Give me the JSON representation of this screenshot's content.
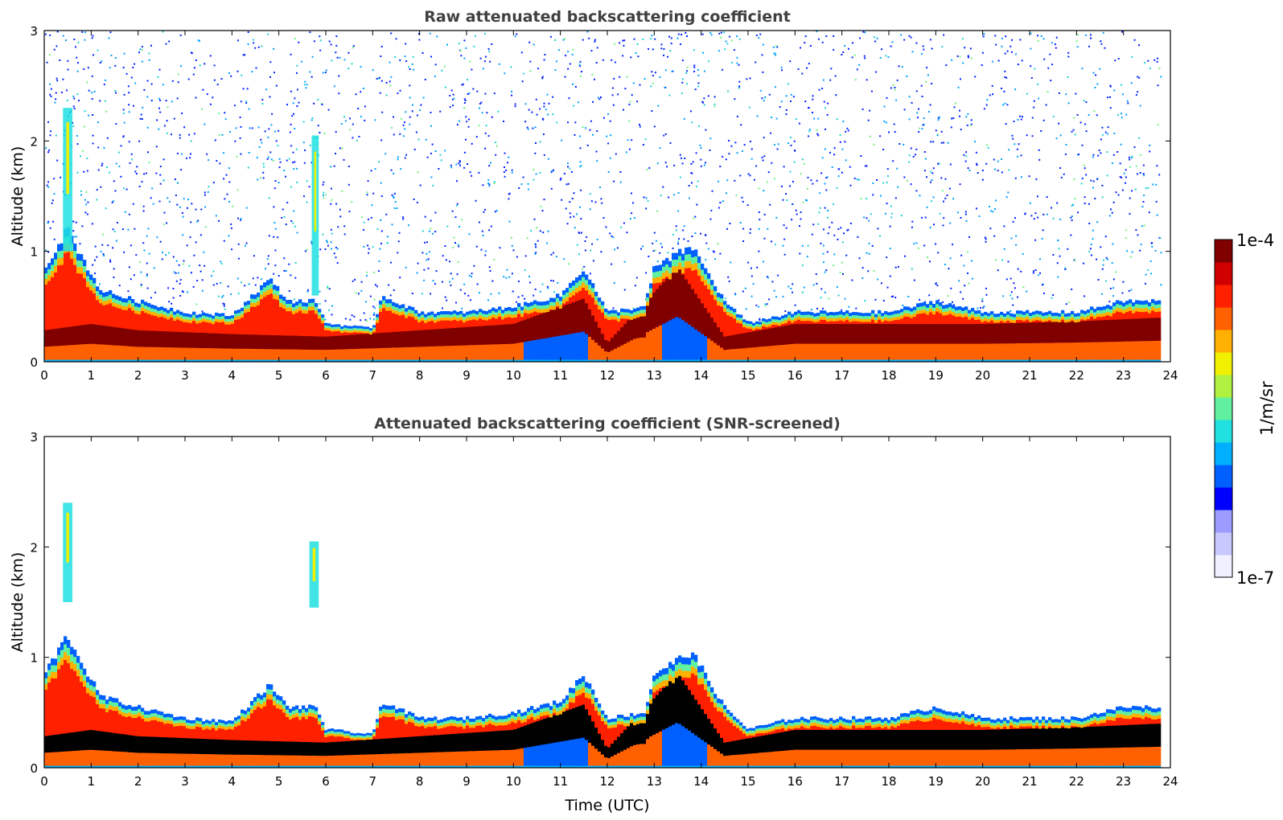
{
  "chart_data": [
    {
      "type": "heatmap",
      "panel": "top",
      "title": "Raw attenuated backscattering coefficient",
      "xlabel": "",
      "ylabel": "Altitude (km)",
      "xlim": [
        0,
        24
      ],
      "ylim": [
        0,
        3
      ],
      "xticks": [
        "0",
        "1",
        "2",
        "3",
        "4",
        "5",
        "6",
        "7",
        "8",
        "9",
        "10",
        "11",
        "12",
        "13",
        "14",
        "15",
        "16",
        "17",
        "18",
        "19",
        "20",
        "21",
        "22",
        "23",
        "24"
      ],
      "yticks": [
        "0",
        "1",
        "2",
        "3"
      ],
      "boundary_layer_top_km": [
        {
          "t": 0.0,
          "h": 0.85
        },
        {
          "t": 0.5,
          "h": 1.2
        },
        {
          "t": 0.8,
          "h": 0.95
        },
        {
          "t": 1.2,
          "h": 0.65
        },
        {
          "t": 2.0,
          "h": 0.55
        },
        {
          "t": 3.0,
          "h": 0.45
        },
        {
          "t": 4.0,
          "h": 0.42
        },
        {
          "t": 4.8,
          "h": 0.75
        },
        {
          "t": 5.2,
          "h": 0.55
        },
        {
          "t": 5.8,
          "h": 0.55
        },
        {
          "t": 6.0,
          "h": 0.35
        },
        {
          "t": 7.0,
          "h": 0.3
        },
        {
          "t": 7.2,
          "h": 0.6
        },
        {
          "t": 8.0,
          "h": 0.45
        },
        {
          "t": 9.0,
          "h": 0.45
        },
        {
          "t": 10.0,
          "h": 0.5
        },
        {
          "t": 11.0,
          "h": 0.6
        },
        {
          "t": 11.5,
          "h": 0.85
        },
        {
          "t": 12.0,
          "h": 0.45
        },
        {
          "t": 12.8,
          "h": 0.5
        },
        {
          "t": 13.0,
          "h": 0.85
        },
        {
          "t": 13.8,
          "h": 1.05
        },
        {
          "t": 14.5,
          "h": 0.55
        },
        {
          "t": 15.0,
          "h": 0.35
        },
        {
          "t": 16.0,
          "h": 0.45
        },
        {
          "t": 17.0,
          "h": 0.45
        },
        {
          "t": 18.0,
          "h": 0.45
        },
        {
          "t": 19.0,
          "h": 0.55
        },
        {
          "t": 20.0,
          "h": 0.45
        },
        {
          "t": 21.0,
          "h": 0.45
        },
        {
          "t": 22.0,
          "h": 0.45
        },
        {
          "t": 23.0,
          "h": 0.55
        },
        {
          "t": 23.8,
          "h": 0.55
        }
      ],
      "aerosol_core_km": [
        {
          "t": 0.0,
          "h": 0.25
        },
        {
          "t": 1.0,
          "h": 0.3
        },
        {
          "t": 2.0,
          "h": 0.25
        },
        {
          "t": 4.0,
          "h": 0.22
        },
        {
          "t": 6.0,
          "h": 0.2
        },
        {
          "t": 8.0,
          "h": 0.25
        },
        {
          "t": 10.0,
          "h": 0.3
        },
        {
          "t": 11.5,
          "h": 0.5
        },
        {
          "t": 12.0,
          "h": 0.15
        },
        {
          "t": 13.5,
          "h": 0.75
        },
        {
          "t": 14.5,
          "h": 0.2
        },
        {
          "t": 16.0,
          "h": 0.3
        },
        {
          "t": 18.0,
          "h": 0.3
        },
        {
          "t": 20.0,
          "h": 0.3
        },
        {
          "t": 22.0,
          "h": 0.32
        },
        {
          "t": 23.8,
          "h": 0.35
        }
      ],
      "elevated_plumes": [
        {
          "t_start": 0.4,
          "t_end": 0.6,
          "h_low": 1.0,
          "h_high": 2.3
        },
        {
          "t_start": 5.7,
          "t_end": 5.85,
          "h_low": 0.6,
          "h_high": 2.05
        }
      ],
      "noise_region": "above boundary layer, sparse blue/cyan speckle up to 3 km"
    },
    {
      "type": "heatmap",
      "panel": "bottom",
      "title": "Attenuated backscattering coefficient (SNR-screened)",
      "xlabel": "Time (UTC)",
      "ylabel": "Altitude (km)",
      "xlim": [
        0,
        24
      ],
      "ylim": [
        0,
        3
      ],
      "xticks": [
        "0",
        "1",
        "2",
        "3",
        "4",
        "5",
        "6",
        "7",
        "8",
        "9",
        "10",
        "11",
        "12",
        "13",
        "14",
        "15",
        "16",
        "17",
        "18",
        "19",
        "20",
        "21",
        "22",
        "23",
        "24"
      ],
      "yticks": [
        "0",
        "1",
        "2",
        "3"
      ],
      "screening": "values below SNR threshold removed (white); saturated core shown black",
      "elevated_plumes": [
        {
          "t_start": 0.4,
          "t_end": 0.6,
          "h_low": 1.5,
          "h_high": 2.4
        },
        {
          "t_start": 5.65,
          "t_end": 5.85,
          "h_low": 1.45,
          "h_high": 2.05
        }
      ]
    }
  ],
  "colorbar": {
    "label": "1/m/sr",
    "max_label": "1e-4",
    "min_label": "1e-7",
    "scale": "log",
    "colors": [
      "#f0f0ff",
      "#c8c8ff",
      "#9c9cff",
      "#0000ff",
      "#0060ff",
      "#00b0ff",
      "#20e0e0",
      "#60f0a0",
      "#b0f040",
      "#f0f000",
      "#ffb000",
      "#ff6000",
      "#ff2000",
      "#d00000",
      "#800000"
    ]
  }
}
